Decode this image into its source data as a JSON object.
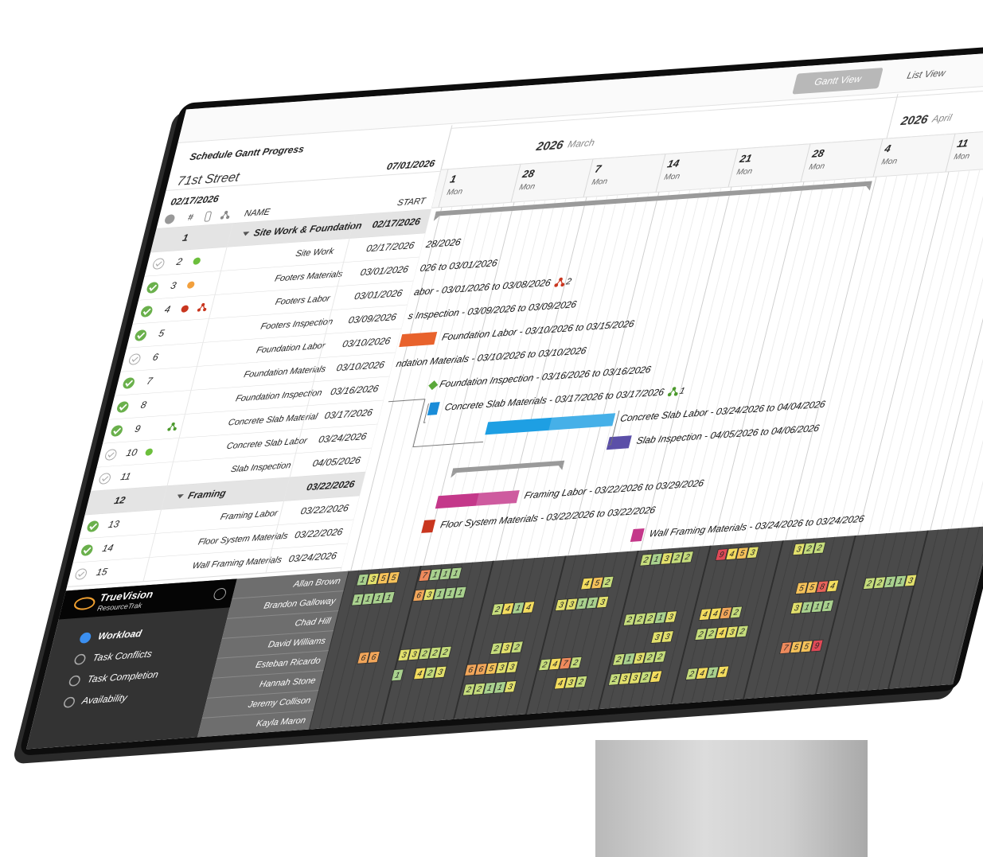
{
  "tabs": [
    "Gantt View",
    "List View"
  ],
  "header": {
    "title": "Schedule Gantt Progress",
    "project": "71st Street",
    "start_date": "02/17/2026",
    "end_date": "07/01/2026"
  },
  "columns": [
    "#",
    "NAME",
    "START"
  ],
  "timeline": {
    "months": [
      {
        "year": 2026,
        "name": "March"
      },
      {
        "year": 2026,
        "name": "April"
      }
    ],
    "days": [
      {
        "day": 1,
        "weekday": "Mon"
      },
      {
        "day": 28,
        "weekday": "Mon"
      },
      {
        "day": 7,
        "weekday": "Mon"
      },
      {
        "day": 14,
        "weekday": "Mon"
      },
      {
        "day": 21,
        "weekday": "Mon"
      },
      {
        "day": 28,
        "weekday": "Mon"
      },
      {
        "day": 4,
        "weekday": "Mon"
      },
      {
        "day": 11,
        "weekday": "Mon"
      }
    ]
  },
  "rows": [
    {
      "num": 1,
      "name": "Site Work & Foundation",
      "start": "02/17/2026",
      "group": true,
      "bar": {
        "color": "#9a9a9a"
      }
    },
    {
      "num": 2,
      "name": "Site Work",
      "start": "02/17/2026",
      "done": false,
      "dot": "#6cbf3c",
      "bar": {
        "label": "28/2026"
      }
    },
    {
      "num": 3,
      "name": "Footers Materials",
      "start": "03/01/2026",
      "done": true,
      "dot": "#f2a03d",
      "bar": {
        "label": "026 to 03/01/2026"
      }
    },
    {
      "num": 4,
      "name": "Footers Labor",
      "start": "03/01/2026",
      "done": true,
      "dot": "#c9361f",
      "icon": "#c9361f",
      "bar": {
        "label": "abor - 03/01/2026 to 03/08/2026",
        "count": 2
      }
    },
    {
      "num": 5,
      "name": "Footers Inspection",
      "start": "03/09/2026",
      "done": true,
      "bar": {
        "label": "s Inspection - 03/09/2026 to 03/09/2026"
      }
    },
    {
      "num": 6,
      "name": "Foundation Labor",
      "start": "03/10/2026",
      "done": false,
      "bar": {
        "label": "Foundation Labor - 03/10/2026 to 03/15/2026",
        "color": "#e8622c"
      }
    },
    {
      "num": 7,
      "name": "Foundation Materials",
      "start": "03/10/2026",
      "done": true,
      "bar": {
        "label": "ndation Materials - 03/10/2026 to 03/10/2026"
      }
    },
    {
      "num": 8,
      "name": "Foundation Inspection",
      "start": "03/16/2026",
      "done": true,
      "bar": {
        "label": "Foundation Inspection - 03/16/2026 to 03/16/2026",
        "color": "#5aa83a"
      }
    },
    {
      "num": 9,
      "name": "Concrete Slab Material",
      "start": "03/17/2026",
      "done": true,
      "icon": "#4d9a2e",
      "bar": {
        "label": "Concrete Slab Materials - 03/17/2026 to 03/17/2026",
        "color": "#1a8cd8",
        "count": 1
      }
    },
    {
      "num": 10,
      "name": "Concrete Slab Labor",
      "start": "03/24/2026",
      "done": false,
      "dot": "#6cbf3c",
      "bar": {
        "label": "Concrete Slab Labor - 03/24/2026 to 04/04/2026",
        "color": "#1e9fe3"
      }
    },
    {
      "num": 11,
      "name": "Slab Inspection",
      "start": "04/05/2026",
      "done": false,
      "bar": {
        "label": "Slab Inspection - 04/05/2026 to 04/06/2026",
        "color": "#5b4fa8"
      }
    },
    {
      "num": 12,
      "name": "Framing",
      "start": "03/22/2026",
      "group": true,
      "bar": {
        "color": "#9a9a9a"
      }
    },
    {
      "num": 13,
      "name": "Framing Labor",
      "start": "03/22/2026",
      "done": true,
      "bar": {
        "label": "Framing Labor - 03/22/2026 to 03/29/2026",
        "color": "#c4388a"
      }
    },
    {
      "num": 14,
      "name": "Floor System Materials",
      "start": "03/22/2026",
      "done": true,
      "bar": {
        "label": "Floor System Materials - 03/22/2026 to 03/22/2026",
        "color": "#c9361f"
      }
    },
    {
      "num": 15,
      "name": "Wall Framing Materials",
      "start": "03/24/2026",
      "done": false,
      "bar": {
        "label": "Wall Framing Materials - 03/24/2026 to 03/24/2026",
        "color": "#c4388a"
      }
    }
  ],
  "sidebar": {
    "logo": "TrueVision",
    "product": "ResourceTrak",
    "nav": [
      {
        "label": "Workload",
        "active": true
      },
      {
        "label": "Task Conflicts",
        "active": false
      },
      {
        "label": "Task Completion",
        "active": false
      },
      {
        "label": "Availability",
        "active": false
      }
    ]
  },
  "workload": [
    {
      "name": "Allan Brown",
      "cells": [
        [
          1,
          3,
          5,
          5
        ],
        [
          7,
          1,
          1,
          1
        ],
        [
          2,
          1,
          3,
          2,
          2
        ],
        [
          9,
          4,
          5,
          3
        ],
        [
          3,
          2,
          2
        ]
      ]
    },
    {
      "name": "Brandon Galloway",
      "cells": [
        [
          1,
          1,
          1,
          1
        ],
        [
          6,
          3,
          1,
          1,
          1
        ],
        [
          4,
          5,
          2
        ]
      ]
    },
    {
      "name": "Chad Hill",
      "cells": [
        [
          2,
          4,
          1,
          4
        ],
        [
          3,
          3,
          1,
          1,
          3
        ],
        [
          5,
          5,
          8,
          4
        ],
        [
          2,
          2,
          1,
          1,
          3
        ]
      ]
    },
    {
      "name": "David Williams",
      "cells": [
        [
          2,
          2,
          2,
          1,
          3
        ],
        [
          4,
          4,
          6,
          2
        ],
        [
          3,
          1,
          1,
          1
        ]
      ]
    },
    {
      "name": "Esteban Ricardo",
      "cells": [
        [
          6,
          6
        ],
        [
          3,
          3,
          2,
          2,
          2
        ],
        [
          2,
          3,
          2
        ],
        [
          3,
          3
        ],
        [
          2,
          2,
          4,
          3,
          2
        ]
      ]
    },
    {
      "name": "Hannah Stone",
      "cells": [
        [
          1
        ],
        [
          4,
          2,
          3
        ],
        [
          6,
          6,
          5,
          3,
          3
        ],
        [
          2,
          4,
          7,
          2
        ],
        [
          2,
          1,
          3,
          2,
          2
        ],
        [
          7,
          5,
          5,
          9
        ]
      ]
    },
    {
      "name": "Jeremy Collison",
      "cells": [
        [
          2,
          2,
          1,
          1,
          3
        ],
        [
          4,
          3,
          2
        ],
        [
          2,
          3,
          3,
          2,
          4
        ],
        [
          2,
          4,
          1,
          4
        ]
      ]
    },
    {
      "name": "Kayla Maron",
      "cells": []
    }
  ]
}
